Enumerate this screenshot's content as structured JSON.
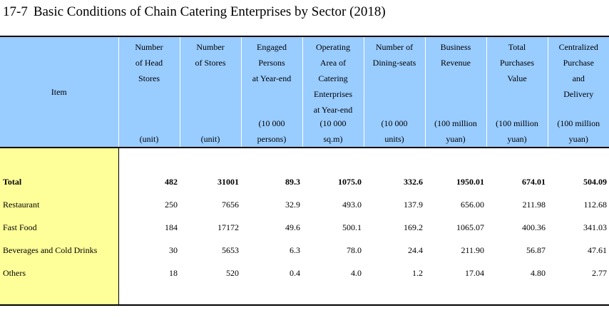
{
  "title": {
    "number": "17-7",
    "text": "Basic Conditions of Chain Catering Enterprises by Sector (2018)"
  },
  "item_header": "Item",
  "columns": [
    {
      "label": [
        "Number",
        "of Head",
        "Stores"
      ],
      "unit": [
        "(unit)"
      ]
    },
    {
      "label": [
        "Number",
        "of Stores"
      ],
      "unit": [
        "(unit)"
      ]
    },
    {
      "label": [
        "Engaged",
        "Persons",
        "at Year-end"
      ],
      "unit": [
        "(10 000",
        "persons)"
      ]
    },
    {
      "label": [
        "Operating",
        "Area of",
        "Catering",
        "Enterprises",
        "at Year-end"
      ],
      "unit": [
        "(10 000",
        "sq.m)"
      ]
    },
    {
      "label": [
        "Number of",
        "Dining-seats"
      ],
      "unit": [
        "(10 000",
        "units)"
      ]
    },
    {
      "label": [
        "Business",
        "Revenue"
      ],
      "unit": [
        "(100 million",
        "yuan)"
      ]
    },
    {
      "label": [
        "Total",
        "Purchases",
        "Value"
      ],
      "unit": [
        "(100 million",
        "yuan)"
      ]
    },
    {
      "label": [
        "Centralized",
        "Purchase",
        "and",
        "Delivery"
      ],
      "unit": [
        "(100 million",
        "yuan)"
      ]
    }
  ],
  "rows": [
    {
      "label": "Total",
      "values": [
        "482",
        "31001",
        "89.3",
        "1075.0",
        "332.6",
        "1950.01",
        "674.01",
        "504.09"
      ]
    },
    {
      "label": "Restaurant",
      "values": [
        "250",
        "7656",
        "32.9",
        "493.0",
        "137.9",
        "656.00",
        "211.98",
        "112.68"
      ]
    },
    {
      "label": "Fast Food",
      "values": [
        "184",
        "17172",
        "49.6",
        "500.1",
        "169.2",
        "1065.07",
        "400.36",
        "341.03"
      ]
    },
    {
      "label": "Beverages and Cold Drinks",
      "values": [
        "30",
        "5653",
        "6.3",
        "78.0",
        "24.4",
        "211.90",
        "56.87",
        "47.61"
      ]
    },
    {
      "label": "Others",
      "values": [
        "18",
        "520",
        "0.4",
        "4.0",
        "1.2",
        "17.04",
        "4.80",
        "2.77"
      ]
    }
  ]
}
